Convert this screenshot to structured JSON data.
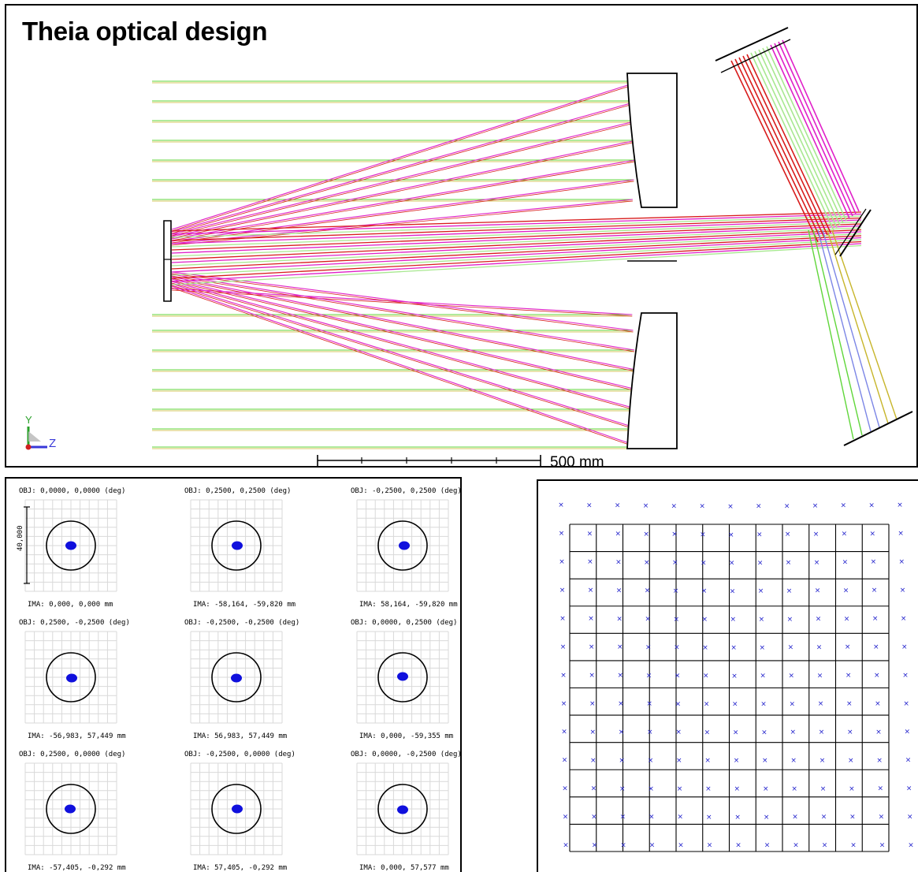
{
  "title": "Theia optical design",
  "scale_bar_label": "500 mm",
  "axis_labels": {
    "y": "Y",
    "z": "Z"
  },
  "colors": {
    "ray_red": "#d81c1c",
    "ray_magenta": "#e020c8",
    "ray_green": "#60d63a",
    "ray_lightgreen": "#a8e890",
    "ray_yellow": "#c7b52a",
    "ray_blue": "#7c86e6",
    "spot_blue": "#1010dd",
    "grid_mark": "#2020cc"
  },
  "spot_diagram": {
    "scale_label": "40,000",
    "spots": [
      {
        "obj": "OBJ: 0,0000, 0,0000 (deg)",
        "ima": "IMA: 0,000, 0,000 mm"
      },
      {
        "obj": "OBJ: 0,2500, 0,2500 (deg)",
        "ima": "IMA: -58,164, -59,820 mm"
      },
      {
        "obj": "OBJ: -0,2500, 0,2500 (deg)",
        "ima": "IMA: 58,164, -59,820 mm"
      },
      {
        "obj": "OBJ: 0,2500, -0,2500 (deg)",
        "ima": "IMA: -56,983, 57,449 mm"
      },
      {
        "obj": "OBJ: -0,2500, -0,2500 (deg)",
        "ima": "IMA: 56,983, 57,449 mm"
      },
      {
        "obj": "OBJ: 0,0000, 0,2500 (deg)",
        "ima": "IMA: 0,000, -59,355 mm"
      },
      {
        "obj": "OBJ: 0,2500, 0,0000 (deg)",
        "ima": "IMA: -57,405, -0,292 mm"
      },
      {
        "obj": "OBJ: -0,2500, 0,0000 (deg)",
        "ima": "IMA: 57,405, -0,292 mm"
      },
      {
        "obj": "OBJ: 0,0000, -0,2500 (deg)",
        "ima": "IMA: 0,000, 57,577 mm"
      }
    ]
  }
}
